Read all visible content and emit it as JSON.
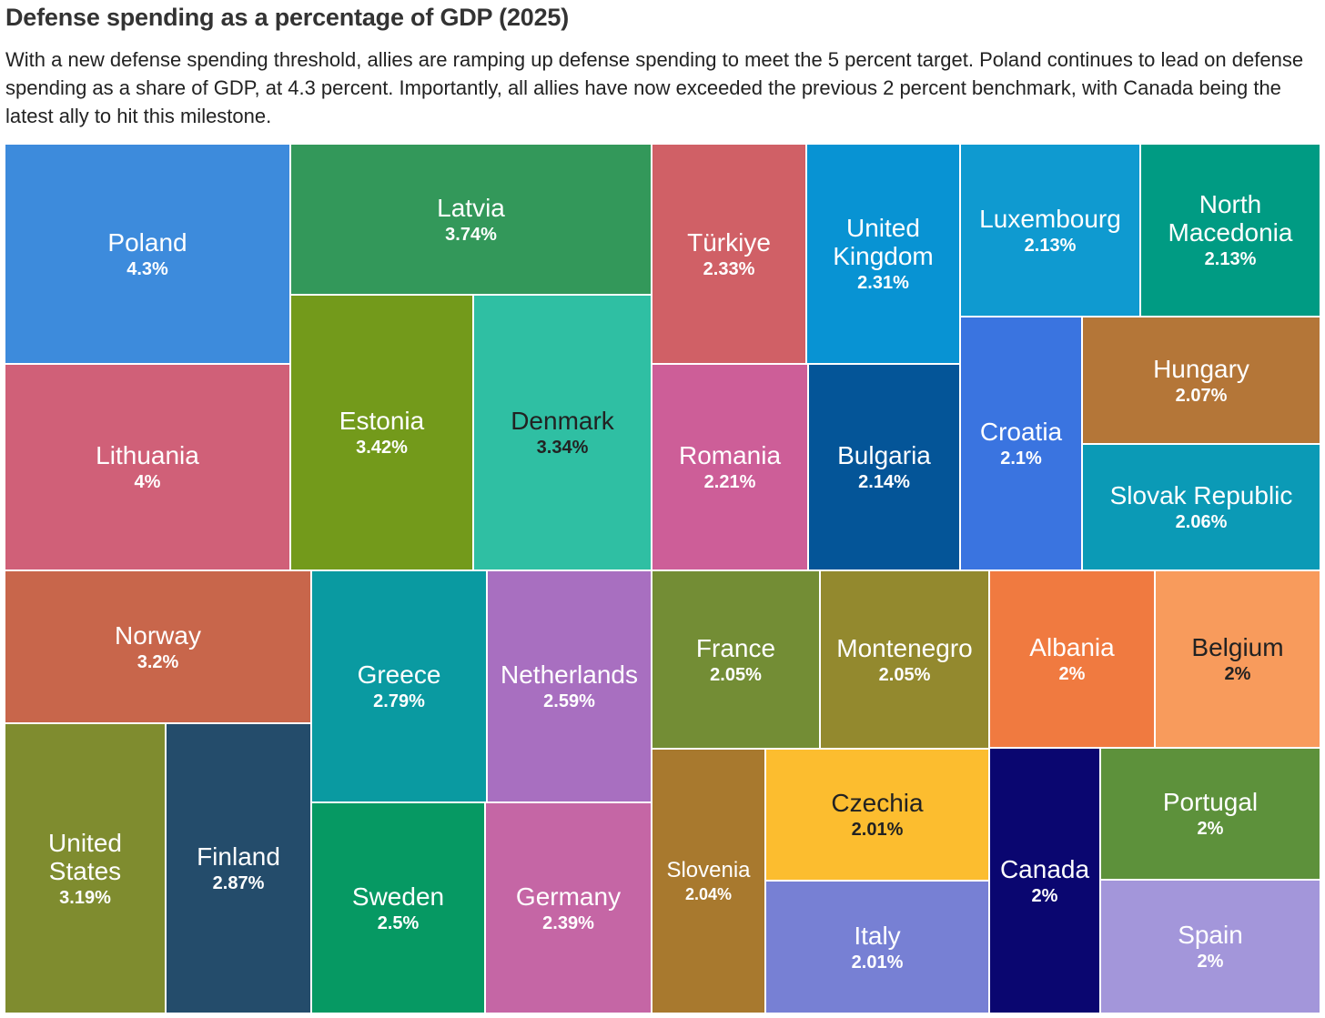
{
  "title": "Defense spending as a percentage of GDP (2025)",
  "subtitle": "With a new defense spending threshold, allies are ramping up defense spending to meet the 5 percent target. Poland continues to lead on defense spending as a share of GDP, at 4.3 percent. Importantly, all allies have now exceeded the previous 2 percent benchmark, with Canada being the latest ally to hit this milestone.",
  "chart_data": {
    "type": "treemap",
    "unit": "%",
    "items": [
      {
        "name": "Poland",
        "label": "4.3%",
        "value": 4.3,
        "color": "#3d8bdc"
      },
      {
        "name": "Lithuania",
        "label": "4%",
        "value": 4.0,
        "color": "#d06078"
      },
      {
        "name": "Latvia",
        "label": "3.74%",
        "value": 3.74,
        "color": "#33985a"
      },
      {
        "name": "Estonia",
        "label": "3.42%",
        "value": 3.42,
        "color": "#739a1b"
      },
      {
        "name": "Denmark",
        "label": "3.34%",
        "value": 3.34,
        "color": "#2fbfa3"
      },
      {
        "name": "Norway",
        "label": "3.2%",
        "value": 3.2,
        "color": "#c8664b"
      },
      {
        "name": "United States",
        "label": "3.19%",
        "value": 3.19,
        "color": "#7f8c2f"
      },
      {
        "name": "Finland",
        "label": "2.87%",
        "value": 2.87,
        "color": "#244c6b"
      },
      {
        "name": "Greece",
        "label": "2.79%",
        "value": 2.79,
        "color": "#0a9aa1"
      },
      {
        "name": "Netherlands",
        "label": "2.59%",
        "value": 2.59,
        "color": "#a86fc0"
      },
      {
        "name": "Sweden",
        "label": "2.5%",
        "value": 2.5,
        "color": "#069963"
      },
      {
        "name": "Germany",
        "label": "2.39%",
        "value": 2.39,
        "color": "#c566a5"
      },
      {
        "name": "Türkiye",
        "label": "2.33%",
        "value": 2.33,
        "color": "#d06066"
      },
      {
        "name": "United Kingdom",
        "label": "2.31%",
        "value": 2.31,
        "color": "#0893d3"
      },
      {
        "name": "Romania",
        "label": "2.21%",
        "value": 2.21,
        "color": "#cd5e98"
      },
      {
        "name": "Bulgaria",
        "label": "2.14%",
        "value": 2.14,
        "color": "#045598"
      },
      {
        "name": "Luxembourg",
        "label": "2.13%",
        "value": 2.13,
        "color": "#0f9ad0"
      },
      {
        "name": "North Macedonia",
        "label": "2.13%",
        "value": 2.13,
        "color": "#009b83"
      },
      {
        "name": "Croatia",
        "label": "2.1%",
        "value": 2.1,
        "color": "#3a74e0"
      },
      {
        "name": "Hungary",
        "label": "2.07%",
        "value": 2.07,
        "color": "#b47638"
      },
      {
        "name": "Slovak Republic",
        "label": "2.06%",
        "value": 2.06,
        "color": "#0b9ab6"
      },
      {
        "name": "France",
        "label": "2.05%",
        "value": 2.05,
        "color": "#738d35"
      },
      {
        "name": "Montenegro",
        "label": "2.05%",
        "value": 2.05,
        "color": "#93892e"
      },
      {
        "name": "Slovenia",
        "label": "2.04%",
        "value": 2.04,
        "color": "#a8792e"
      },
      {
        "name": "Czechia",
        "label": "2.01%",
        "value": 2.01,
        "color": "#fcbd2f"
      },
      {
        "name": "Italy",
        "label": "2.01%",
        "value": 2.01,
        "color": "#7780d4"
      },
      {
        "name": "Albania",
        "label": "2%",
        "value": 2.0,
        "color": "#f07a40"
      },
      {
        "name": "Belgium",
        "label": "2%",
        "value": 2.0,
        "color": "#f89b5c"
      },
      {
        "name": "Canada",
        "label": "2%",
        "value": 2.0,
        "color": "#0a0670"
      },
      {
        "name": "Portugal",
        "label": "2%",
        "value": 2.0,
        "color": "#5d913b"
      },
      {
        "name": "Spain",
        "label": "2%",
        "value": 2.0,
        "color": "#a396da"
      }
    ]
  }
}
